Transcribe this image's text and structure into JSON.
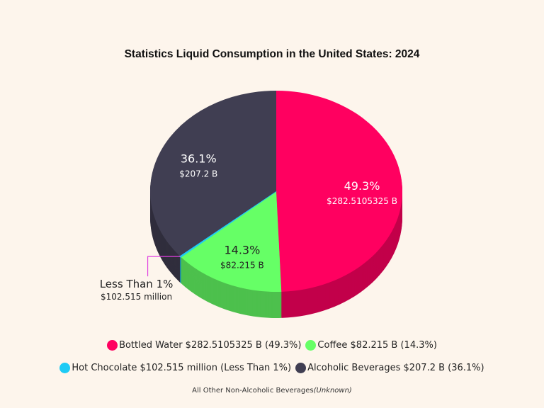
{
  "chart_data": {
    "type": "pie",
    "style": "3d",
    "title": "Statistics Liquid Consumption in the United States: 2024",
    "slices": [
      {
        "name": "Bottled Water",
        "value": 282.5105325,
        "value_label": "$282.5105325 B",
        "percent": 49.3,
        "percent_label": "49.3%",
        "color": "#FF0060",
        "side_color": "#C2004A",
        "label_color": "#FFFFFF"
      },
      {
        "name": "Coffee",
        "value": 82.215,
        "value_label": "$82.215 B",
        "percent": 14.3,
        "percent_label": "14.3%",
        "color": "#66FF66",
        "side_color": "#4DC04D",
        "label_color": "#222222"
      },
      {
        "name": "Hot Chocolate",
        "value": 0.102515,
        "value_label": "$102.515 million",
        "percent": 0.2,
        "percent_label": "Less Than 1%",
        "color": "#1ECBF5",
        "side_color": "#1898BA",
        "label_color": "#222222"
      },
      {
        "name": "Alcoholic Beverages",
        "value": 207.2,
        "value_label": "$207.2 B",
        "percent": 36.1,
        "percent_label": "36.1%",
        "color": "#403E52",
        "side_color": "#302E3D",
        "label_color": "#FFFFFF"
      }
    ],
    "legend": [
      "Bottled Water $282.5105325 B (49.3%)",
      "Coffee $82.215 B (14.3%)",
      "Hot Chocolate $102.515 million (Less Than 1%)",
      "Alcoholic Beverages $207.2 B (36.1%)"
    ],
    "legend_placement": "bottom",
    "callout_color": "#E040E0",
    "note": "All Other Non-Alcoholic Beverages",
    "note_italic": "(Unknown)"
  }
}
